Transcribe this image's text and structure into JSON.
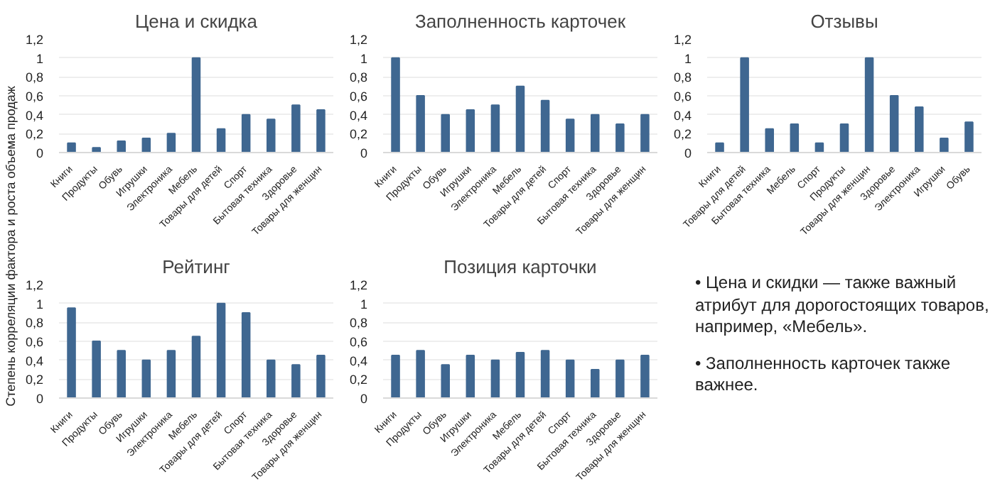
{
  "chart_data": [
    {
      "type": "bar",
      "title": "Цена и скидка",
      "ylabel": "Степень корреляции фактора и роста объема продаж",
      "categories": [
        "Книги",
        "Продукты",
        "Обувь",
        "Игрушки",
        "Электроника",
        "Мебель",
        "Товары для детей",
        "Спорт",
        "Бытовая техника",
        "Здоровье",
        "Товары для женщин"
      ],
      "values": [
        0.1,
        0.05,
        0.12,
        0.15,
        0.2,
        1,
        0.25,
        0.4,
        0.35,
        0.5,
        0.45
      ],
      "color": "#3f6791",
      "ylim": [
        0,
        1.2
      ],
      "yticks": [
        0,
        {
          "value": 0.2,
          "label": "0,2"
        },
        {
          "value": 0.4,
          "label": "0,4"
        },
        {
          "value": 0.6,
          "label": "0,6"
        },
        {
          "value": 0.8,
          "label": "0,8"
        },
        1,
        {
          "value": 1.2,
          "label": "1,2"
        }
      ],
      "grid": "y"
    },
    {
      "type": "bar",
      "title": "Заполненность карточек",
      "categories": [
        "Книги",
        "Продукты",
        "Обувь",
        "Игрушки",
        "Электроника",
        "Мебель",
        "Товары для детей",
        "Спорт",
        "Бытовая техника",
        "Здоровье",
        "Товары для женщин"
      ],
      "values": [
        1,
        0.6,
        0.4,
        0.45,
        0.5,
        0.7,
        0.55,
        0.35,
        0.4,
        0.3,
        0.4
      ],
      "color": "#3f6791",
      "ylim": [
        0,
        1.2
      ],
      "yticks": [
        0,
        {
          "value": 0.2,
          "label": "0,2"
        },
        {
          "value": 0.4,
          "label": "0,4"
        },
        {
          "value": 0.6,
          "label": "0,6"
        },
        {
          "value": 0.8,
          "label": "0,8"
        },
        1,
        {
          "value": 1.2,
          "label": "1,2"
        }
      ],
      "grid": "y"
    },
    {
      "type": "bar",
      "title": "Отзывы",
      "categories": [
        "Книги",
        "Товары для детей",
        "Бытовая техника",
        "Мебель",
        "Спорт",
        "Продукты",
        "Товары для женщин",
        "Здоровье",
        "Электроника",
        "Игрушки",
        "Обувь"
      ],
      "values": [
        0.1,
        1,
        0.25,
        0.3,
        0.1,
        0.3,
        1,
        0.6,
        0.48,
        0.15,
        0.32
      ],
      "color": "#3f6791",
      "ylim": [
        0,
        1.2
      ],
      "yticks": [
        0,
        {
          "value": 0.2,
          "label": "0,2"
        },
        {
          "value": 0.4,
          "label": "0,4"
        },
        {
          "value": 0.6,
          "label": "0,6"
        },
        {
          "value": 0.8,
          "label": "0,8"
        },
        1,
        {
          "value": 1.2,
          "label": "1,2"
        }
      ],
      "grid": "y"
    },
    {
      "type": "bar",
      "title": "Рейтинг",
      "categories": [
        "Книги",
        "Продукты",
        "Обувь",
        "Игрушки",
        "Электроника",
        "Мебель",
        "Товары для детей",
        "Спорт",
        "Бытовая техника",
        "Здоровье",
        "Товары для женщин"
      ],
      "values": [
        0.95,
        0.6,
        0.5,
        0.4,
        0.5,
        0.65,
        1,
        0.9,
        0.4,
        0.35,
        0.45
      ],
      "color": "#3f6791",
      "ylim": [
        0,
        1.2
      ],
      "yticks": [
        0,
        {
          "value": 0.2,
          "label": "0,2"
        },
        {
          "value": 0.4,
          "label": "0,4"
        },
        {
          "value": 0.6,
          "label": "0,6"
        },
        {
          "value": 0.8,
          "label": "0,8"
        },
        1,
        {
          "value": 1.2,
          "label": "1,2"
        }
      ],
      "grid": "y"
    },
    {
      "type": "bar",
      "title": "Позиция карточки",
      "categories": [
        "Книги",
        "Продукты",
        "Обувь",
        "Игрушки",
        "Электроника",
        "Мебель",
        "Товары для детей",
        "Спорт",
        "Бытовая техника",
        "Здоровье",
        "Товары для женщин"
      ],
      "values": [
        0.45,
        0.5,
        0.35,
        0.45,
        0.4,
        0.48,
        0.5,
        0.4,
        0.3,
        0.4,
        0.45
      ],
      "color": "#3f6791",
      "ylim": [
        0,
        1.2
      ],
      "yticks": [
        0,
        {
          "value": 0.2,
          "label": "0,2"
        },
        {
          "value": 0.4,
          "label": "0,4"
        },
        {
          "value": 0.6,
          "label": "0,6"
        },
        {
          "value": 0.8,
          "label": "0,8"
        },
        1,
        {
          "value": 1.2,
          "label": "1,2"
        }
      ],
      "grid": "y"
    },
    {
      "type": "other",
      "annotations": [
        "• Цена и скидки — также важный атрибут для дорогостоящих товаров, например, «Мебель».",
        "• Заполненность карточек также важнее."
      ]
    }
  ]
}
